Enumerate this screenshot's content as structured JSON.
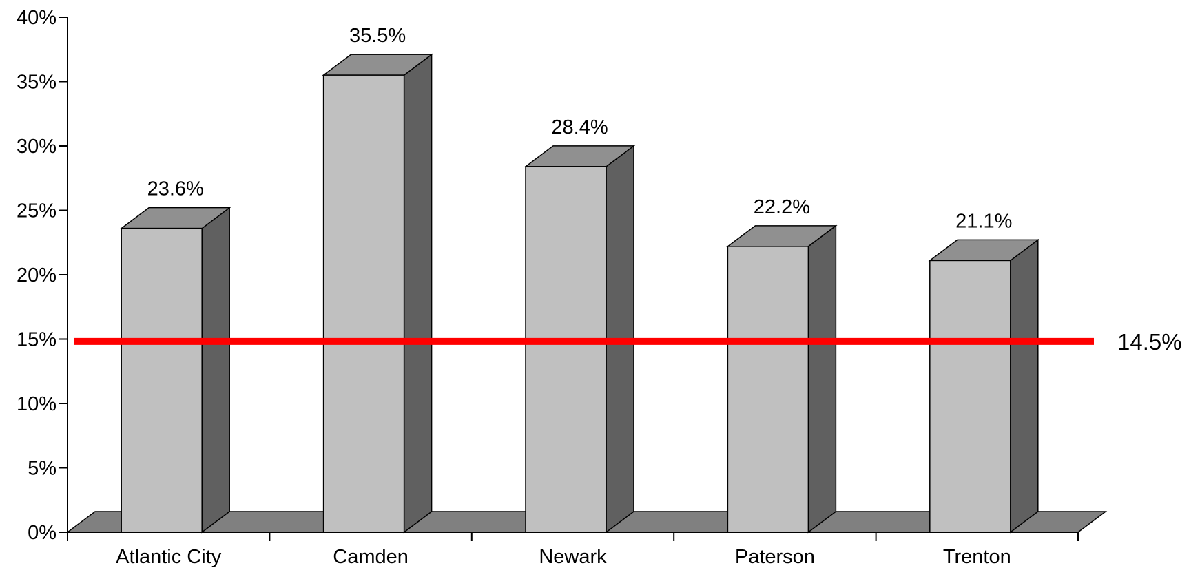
{
  "chart_data": {
    "type": "bar",
    "categories": [
      "Atlantic City",
      "Camden",
      "Newark",
      "Paterson",
      "Trenton"
    ],
    "series": [
      {
        "values": [
          23.6,
          35.5,
          28.4,
          22.2,
          21.1
        ],
        "data_labels": [
          "23.6%",
          "35.5%",
          "28.4%",
          "22.2%",
          "21.1%"
        ]
      }
    ],
    "ylim": [
      0,
      40
    ],
    "y_ticks": [
      0,
      5,
      10,
      15,
      20,
      25,
      30,
      35,
      40
    ],
    "y_tick_labels": [
      "0%",
      "5%",
      "10%",
      "15%",
      "20%",
      "25%",
      "30%",
      "35%",
      "40%"
    ],
    "reference_line": {
      "value": 14.5,
      "label": "14.5%",
      "color": "#ff0000"
    },
    "grid": false,
    "legend": "none",
    "style": "3d-bar",
    "colors": {
      "bar_front": "#c0c0c0",
      "bar_top": "#909090",
      "bar_side": "#606060",
      "floor": "#808080",
      "outline": "#000000"
    }
  }
}
